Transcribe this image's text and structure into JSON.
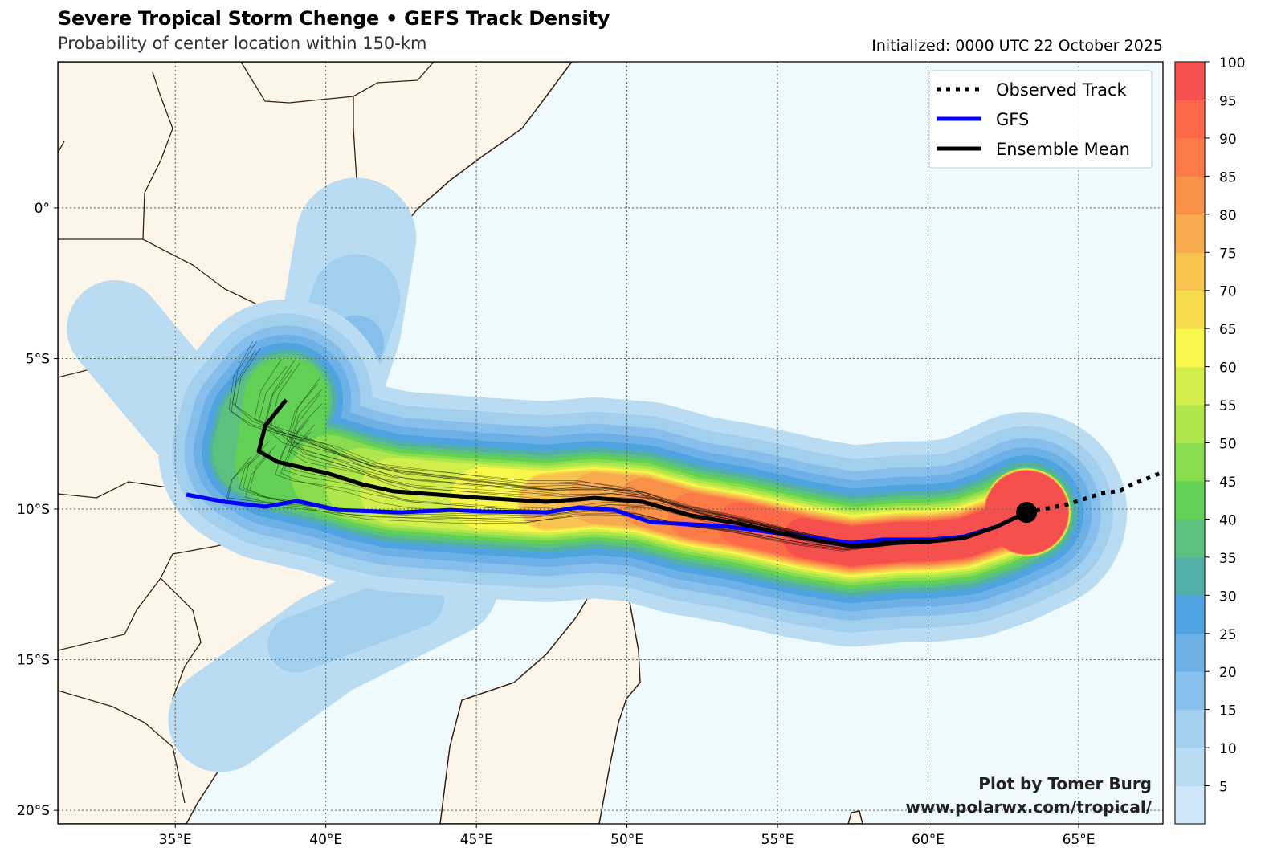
{
  "header": {
    "title": "Severe Tropical Storm Chenge • GEFS Track Density",
    "subtitle": "Probability of center location within 150-km",
    "initialized": "Initialized: 0000 UTC 22 October 2025"
  },
  "map": {
    "lon_range": [
      31.1,
      67.8
    ],
    "lat_range": [
      -20.45,
      4.85
    ],
    "lon_ticks": [
      {
        "v": 35,
        "label": "35°E"
      },
      {
        "v": 40,
        "label": "40°E"
      },
      {
        "v": 45,
        "label": "45°E"
      },
      {
        "v": 50,
        "label": "50°E"
      },
      {
        "v": 55,
        "label": "55°E"
      },
      {
        "v": 60,
        "label": "60°E"
      },
      {
        "v": 65,
        "label": "65°E"
      }
    ],
    "lat_ticks": [
      {
        "v": 0,
        "label": "0°"
      },
      {
        "v": -5,
        "label": "5°S"
      },
      {
        "v": -10,
        "label": "10°S"
      },
      {
        "v": -15,
        "label": "15°S"
      },
      {
        "v": -20,
        "label": "20°S"
      }
    ],
    "colors": {
      "land": "#fbf5ea",
      "ocean": "#eefafd",
      "coast": "#3b2010",
      "gfs": "#0000ff",
      "mean": "#000000"
    }
  },
  "legend": {
    "items": [
      {
        "label": "Observed Track",
        "style": "dotted"
      },
      {
        "label": "GFS",
        "style": "blue"
      },
      {
        "label": "Ensemble Mean",
        "style": "black"
      }
    ]
  },
  "tracks": {
    "observed": [
      [
        63.27,
        -10.11
      ],
      [
        64.65,
        -9.84
      ],
      [
        65.72,
        -9.49
      ],
      [
        66.39,
        -9.39
      ],
      [
        66.79,
        -9.17
      ],
      [
        67.8,
        -8.77
      ]
    ],
    "ensemble_mean": [
      [
        63.27,
        -10.11
      ],
      [
        62.25,
        -10.59
      ],
      [
        61.19,
        -10.96
      ],
      [
        60.12,
        -11.07
      ],
      [
        59.05,
        -11.09
      ],
      [
        57.45,
        -11.23
      ],
      [
        55.85,
        -10.96
      ],
      [
        53.72,
        -10.48
      ],
      [
        52.12,
        -10.21
      ],
      [
        50.52,
        -9.76
      ],
      [
        48.92,
        -9.63
      ],
      [
        47.32,
        -9.76
      ],
      [
        45.19,
        -9.63
      ],
      [
        42.25,
        -9.41
      ],
      [
        41.19,
        -9.17
      ],
      [
        40.12,
        -8.83
      ],
      [
        38.39,
        -8.43
      ],
      [
        37.77,
        -8.08
      ],
      [
        37.99,
        -7.23
      ],
      [
        38.68,
        -6.37
      ]
    ],
    "gfs": [
      [
        63.27,
        -10.11
      ],
      [
        62.25,
        -10.59
      ],
      [
        61.19,
        -10.91
      ],
      [
        60.12,
        -11.01
      ],
      [
        58.52,
        -11.01
      ],
      [
        57.45,
        -11.12
      ],
      [
        55.85,
        -10.91
      ],
      [
        53.19,
        -10.56
      ],
      [
        50.79,
        -10.43
      ],
      [
        49.59,
        -10.03
      ],
      [
        48.39,
        -9.95
      ],
      [
        47.32,
        -10.11
      ],
      [
        45.19,
        -10.08
      ],
      [
        44.12,
        -10.03
      ],
      [
        42.52,
        -10.11
      ],
      [
        40.39,
        -10.03
      ],
      [
        39.05,
        -9.73
      ],
      [
        37.99,
        -9.92
      ],
      [
        36.65,
        -9.76
      ],
      [
        35.37,
        -9.52
      ]
    ],
    "current_position": [
      63.27,
      -10.11
    ]
  },
  "colorbar": {
    "levels": [
      0,
      5,
      10,
      15,
      20,
      25,
      30,
      35,
      40,
      45,
      50,
      55,
      60,
      65,
      70,
      75,
      80,
      85,
      90,
      95,
      100
    ],
    "tick_labels": [
      "5",
      "10",
      "15",
      "20",
      "25",
      "30",
      "35",
      "40",
      "45",
      "50",
      "55",
      "60",
      "65",
      "70",
      "75",
      "80",
      "85",
      "90",
      "95",
      "100"
    ],
    "colors": [
      "#cfe5f8",
      "#b9dcf2",
      "#a3cfef",
      "#86bfeb",
      "#6cb0e6",
      "#4fa3e0",
      "#52b0a8",
      "#5cc07e",
      "#62d054",
      "#88dc4e",
      "#aee64c",
      "#d2ee4a",
      "#f6f74a",
      "#f6dc4c",
      "#f7c24e",
      "#f7aa4e",
      "#f99048",
      "#fb7a48",
      "#fc6848",
      "#f5504e"
    ]
  },
  "watermark": {
    "line1": "Plot by Tomer Burg",
    "line2": "www.polarwx.com/tropical/"
  }
}
